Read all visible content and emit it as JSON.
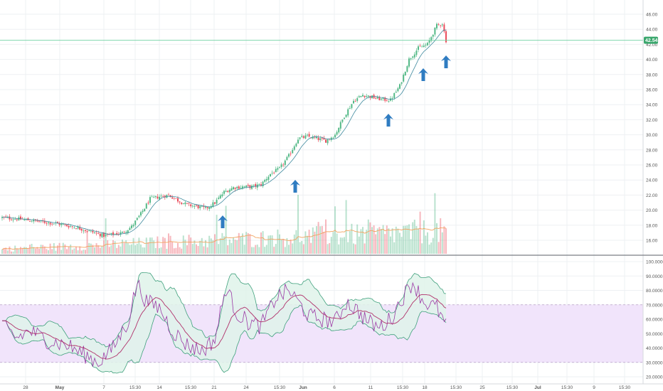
{
  "colors": {
    "up": "#53b987",
    "down": "#eb4d5c",
    "ma": "#3f8a9e",
    "arrow": "#2f7cc1",
    "price_line": "#6fd0a0",
    "price_badge": "#3aa76d",
    "volume_ma": "#f2a35e",
    "rsi_line": "#9c3aa6",
    "rsi_ma": "#b0306a",
    "band_edge": "#3fa07c",
    "band_fill": "#dff3ea",
    "rsi_zone": "#f1e4fb",
    "grid": "#eef0f3",
    "axis_text": "#555555"
  },
  "price_axis": {
    "labels": [
      "46.00",
      "44.00",
      "42.00",
      "40.00",
      "38.00",
      "36.00",
      "34.00",
      "32.00",
      "30.00",
      "28.00",
      "26.00",
      "24.00",
      "22.00",
      "20.00",
      "18.00",
      "16.00"
    ],
    "current_price_label": "42.54"
  },
  "rsi_axis": {
    "labels": [
      "100.0000",
      "90.0000",
      "80.0000",
      "70.0000",
      "60.0000",
      "50.0000",
      "40.0000",
      "30.0000",
      "20.0000"
    ]
  },
  "time_axis": {
    "labels": [
      "28",
      "May",
      "7",
      "15:30",
      "14",
      "15:30",
      "21",
      "24",
      "15:30",
      "Jun",
      "6",
      "11",
      "15:30",
      "18",
      "15:30",
      "25",
      "15:30",
      "Jul",
      "15:30",
      "9",
      "15:30"
    ]
  },
  "chart_data": [
    {
      "type": "candlestick",
      "panel": "price",
      "y_range": [
        15,
        47
      ],
      "close_anchors": [
        [
          0,
          19.0
        ],
        [
          10,
          18.8
        ],
        [
          20,
          18.5
        ],
        [
          30,
          18.2
        ],
        [
          40,
          17.7
        ],
        [
          50,
          17.0
        ],
        [
          55,
          16.6
        ],
        [
          60,
          16.8
        ],
        [
          65,
          17.0
        ],
        [
          70,
          17.8
        ],
        [
          75,
          19.5
        ],
        [
          80,
          21.5
        ],
        [
          85,
          21.8
        ],
        [
          90,
          22.0
        ],
        [
          95,
          21.3
        ],
        [
          100,
          20.7
        ],
        [
          105,
          20.5
        ],
        [
          110,
          20.2
        ],
        [
          115,
          21.0
        ],
        [
          120,
          22.4
        ],
        [
          125,
          23.0
        ],
        [
          130,
          23.1
        ],
        [
          135,
          23.1
        ],
        [
          140,
          23.4
        ],
        [
          145,
          24.8
        ],
        [
          150,
          25.5
        ],
        [
          155,
          27.2
        ],
        [
          160,
          29.5
        ],
        [
          165,
          29.8
        ],
        [
          170,
          29.5
        ],
        [
          175,
          29.2
        ],
        [
          180,
          30.0
        ],
        [
          185,
          32.5
        ],
        [
          190,
          34.5
        ],
        [
          195,
          35.3
        ],
        [
          200,
          35.0
        ],
        [
          205,
          34.7
        ],
        [
          210,
          34.6
        ],
        [
          215,
          36.5
        ],
        [
          220,
          40.0
        ],
        [
          225,
          41.5
        ],
        [
          230,
          42.0
        ],
        [
          235,
          44.5
        ],
        [
          238,
          44.8
        ],
        [
          240,
          42.5
        ]
      ],
      "moving_average": "present",
      "current_price": 42.54
    },
    {
      "type": "bar",
      "panel": "volume",
      "volume_moving_average": "present"
    },
    {
      "type": "line",
      "panel": "rsi",
      "y_range": [
        15,
        102
      ],
      "overbought_level": 70,
      "oversold_level": 30,
      "rsi_anchors": [
        [
          0,
          55
        ],
        [
          8,
          47
        ],
        [
          15,
          52
        ],
        [
          25,
          45
        ],
        [
          35,
          42
        ],
        [
          45,
          35
        ],
        [
          52,
          30
        ],
        [
          60,
          40
        ],
        [
          68,
          58
        ],
        [
          73,
          85
        ],
        [
          78,
          72
        ],
        [
          85,
          68
        ],
        [
          92,
          52
        ],
        [
          100,
          42
        ],
        [
          108,
          38
        ],
        [
          115,
          46
        ],
        [
          121,
          82
        ],
        [
          127,
          64
        ],
        [
          133,
          58
        ],
        [
          140,
          55
        ],
        [
          148,
          75
        ],
        [
          155,
          80
        ],
        [
          160,
          72
        ],
        [
          166,
          62
        ],
        [
          173,
          60
        ],
        [
          180,
          58
        ],
        [
          186,
          72
        ],
        [
          192,
          66
        ],
        [
          198,
          58
        ],
        [
          204,
          54
        ],
        [
          210,
          60
        ],
        [
          216,
          74
        ],
        [
          222,
          86
        ],
        [
          228,
          72
        ],
        [
          235,
          68
        ],
        [
          240,
          55
        ]
      ]
    }
  ]
}
